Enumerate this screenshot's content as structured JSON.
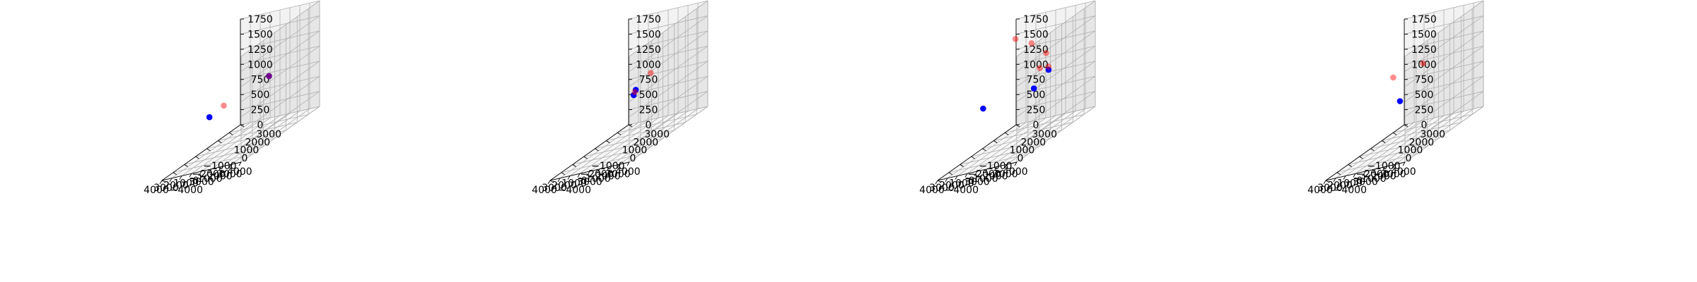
{
  "figure": {
    "background": "#ffffff"
  },
  "style": {
    "pane_left": "#f2f2f2",
    "pane_right": "#e6e6e6",
    "pane_floor": "#f7f7f7"
  },
  "chart_data": [
    {
      "type": "scatter",
      "projection": "3d",
      "grid": true,
      "xlim": [
        -4000,
        4000
      ],
      "ylim": [
        -4000,
        3000
      ],
      "zlim": [
        0,
        1750
      ],
      "xticks": [
        "−4000",
        "−3000",
        "−2000",
        "−1000",
        "0",
        "1000",
        "2000",
        "3000",
        "4000"
      ],
      "yticks": [
        "−4000",
        "−3000",
        "−2000",
        "−1000",
        "0",
        "1000",
        "2000",
        "3000"
      ],
      "zticks": [
        "0",
        "250",
        "500",
        "750",
        "1000",
        "1250",
        "1500",
        "1750"
      ],
      "series": [
        {
          "color": "#0000ff",
          "alpha": 1.0,
          "points": [
            [
              -1500,
              700,
              900
            ],
            [
              2600,
              -1000,
              600
            ]
          ]
        },
        {
          "color": "#ff0000",
          "alpha": 0.45,
          "points": [
            [
              -1500,
              700,
              900
            ],
            [
              1600,
              -600,
              700
            ]
          ]
        }
      ]
    },
    {
      "type": "scatter",
      "projection": "3d",
      "grid": true,
      "xlim": [
        -4000,
        4000
      ],
      "ylim": [
        -4000,
        3000
      ],
      "zlim": [
        0,
        1750
      ],
      "xticks": [
        "−4000",
        "−3000",
        "−2000",
        "−1000",
        "0",
        "1000",
        "2000",
        "3000",
        "4000"
      ],
      "yticks": [
        "−4000",
        "−3000",
        "−2000",
        "−1000",
        "0",
        "1000",
        "2000",
        "3000"
      ],
      "zticks": [
        "0",
        "250",
        "500",
        "750",
        "1000",
        "1250",
        "1500",
        "1750"
      ],
      "series": [
        {
          "color": "#0000ff",
          "alpha": 1.0,
          "points": [
            [
              100,
              200,
              800
            ],
            [
              200,
              100,
              730
            ]
          ]
        },
        {
          "color": "#ff0000",
          "alpha": 0.45,
          "points": [
            [
              -500,
              1000,
              950
            ],
            [
              150,
              150,
              770
            ]
          ]
        }
      ]
    },
    {
      "type": "scatter",
      "projection": "3d",
      "grid": true,
      "xlim": [
        -4000,
        4000
      ],
      "ylim": [
        -4000,
        3000
      ],
      "zlim": [
        0,
        1750
      ],
      "xticks": [
        "−4000",
        "−3000",
        "−2000",
        "−1000",
        "0",
        "1000",
        "2000",
        "3000",
        "4000"
      ],
      "yticks": [
        "−4000",
        "−3000",
        "−2000",
        "−1000",
        "0",
        "1000",
        "2000",
        "3000"
      ],
      "zticks": [
        "0",
        "250",
        "500",
        "750",
        "1000",
        "1250",
        "1500",
        "1750"
      ],
      "series": [
        {
          "color": "#0000ff",
          "alpha": 1.0,
          "points": [
            [
              -2000,
              600,
              1000
            ],
            [
              -1200,
              0,
              800
            ],
            [
              2800,
              -1000,
              750
            ]
          ]
        },
        {
          "color": "#ff0000",
          "alpha": 0.45,
          "points": [
            [
              -2000,
              600,
              1050
            ],
            [
              -1000,
              700,
              1050
            ],
            [
              -1300,
              1000,
              1250
            ],
            [
              400,
              1200,
              1450
            ],
            [
              1800,
              1000,
              1600
            ]
          ]
        }
      ]
    },
    {
      "type": "scatter",
      "projection": "3d",
      "grid": true,
      "xlim": [
        -4000,
        4000
      ],
      "ylim": [
        -4000,
        3000
      ],
      "zlim": [
        0,
        1750
      ],
      "xticks": [
        "−4000",
        "−3000",
        "−2000",
        "−1000",
        "0",
        "1000",
        "2000",
        "3000",
        "4000"
      ],
      "yticks": [
        "−4000",
        "−3000",
        "−2000",
        "−1000",
        "0",
        "1000",
        "2000",
        "3000"
      ],
      "zticks": [
        "0",
        "250",
        "500",
        "750",
        "1000",
        "1250",
        "1500",
        "1750"
      ],
      "series": [
        {
          "color": "#0000ff",
          "alpha": 1.0,
          "points": [
            [
              700,
              -300,
              700
            ]
          ]
        },
        {
          "color": "#ff0000",
          "alpha": 0.45,
          "points": [
            [
              -500,
              700,
              1150
            ],
            [
              1600,
              -100,
              1100
            ]
          ]
        }
      ]
    }
  ]
}
